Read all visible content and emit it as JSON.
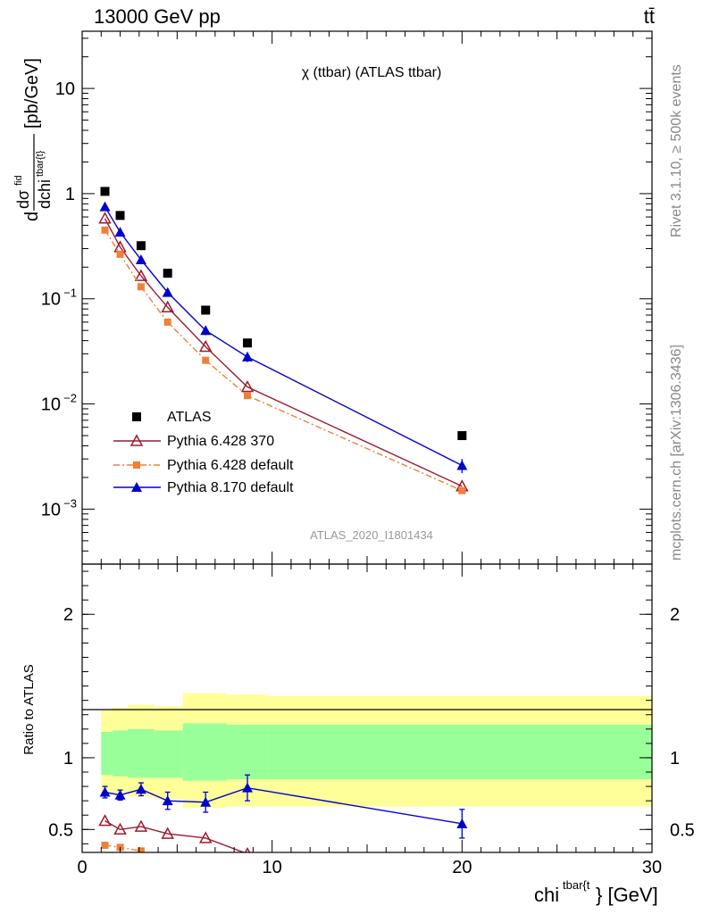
{
  "header": {
    "energy": "13000 GeV pp",
    "process": "tt̄"
  },
  "side_labels": {
    "rivet": "Rivet 3.1.10, ≥ 500k events",
    "mcplots": "mcplots.cern.ch [arXiv:1306.3436]"
  },
  "chart_data": [
    {
      "type": "scatter",
      "panel": "main",
      "title": "χ (ttbar) (ATLAS ttbar)",
      "analysis_id": "ATLAS_2020_I1801434",
      "ylabel": "dσfid / dchitbar{t} [pb/GeV]",
      "ylabel_parts": {
        "d_top": "dσ",
        "sup_top": "fid",
        "d_bot": "dchi",
        "sup_bot": "tbar{t}",
        "unit": "[pb/GeV]",
        "lead": "d"
      },
      "yscale": "log",
      "ylim": [
        0.0003,
        35
      ],
      "xlim": [
        0,
        30
      ],
      "yticks": [
        {
          "v": 10,
          "base": "10",
          "exp": ""
        },
        {
          "v": 1,
          "base": "1",
          "exp": ""
        },
        {
          "v": 0.1,
          "base": "10",
          "exp": "−1"
        },
        {
          "v": 0.01,
          "base": "10",
          "exp": "−2"
        },
        {
          "v": 0.001,
          "base": "10",
          "exp": "−3"
        }
      ],
      "legend_position": "lower-left",
      "series": [
        {
          "name": "ATLAS",
          "marker": "square",
          "color": "#000000",
          "line": "none",
          "x": [
            1.2,
            2.0,
            3.1,
            4.5,
            6.5,
            8.7,
            20.0
          ],
          "y": [
            1.05,
            0.62,
            0.32,
            0.175,
            0.078,
            0.038,
            0.005
          ]
        },
        {
          "name": "Pythia 6.428 370",
          "marker": "triangle-open",
          "color": "#9b1c2e",
          "line": "solid",
          "x": [
            1.2,
            2.0,
            3.1,
            4.5,
            6.5,
            8.7,
            20.0
          ],
          "y": [
            0.58,
            0.31,
            0.165,
            0.083,
            0.035,
            0.0145,
            0.00165
          ]
        },
        {
          "name": "Pythia 6.428 default",
          "marker": "square-small",
          "color": "#f07f3a",
          "line": "dashdot",
          "x": [
            1.2,
            2.0,
            3.1,
            4.5,
            6.5,
            8.7,
            20.0
          ],
          "y": [
            0.45,
            0.265,
            0.13,
            0.06,
            0.026,
            0.012,
            0.0015
          ]
        },
        {
          "name": "Pythia 8.170 default",
          "marker": "triangle",
          "color": "#0000cc",
          "line": "solid",
          "x": [
            1.2,
            2.0,
            3.1,
            4.5,
            6.5,
            8.7,
            20.0
          ],
          "y": [
            0.75,
            0.43,
            0.235,
            0.115,
            0.05,
            0.028,
            0.0026
          ],
          "err": [
            0.03,
            0.02,
            0.015,
            0.006,
            0.005,
            0.003,
            0.0004
          ]
        }
      ]
    },
    {
      "type": "scatter",
      "panel": "ratio",
      "ylabel": "Ratio to ATLAS",
      "xlabel": "chitbar{t} [GeV]",
      "xlabel_parts": {
        "base": "chi",
        "sup": "tbar{t",
        "tail": "} [GeV]"
      },
      "ylim": [
        0.34,
        2.35
      ],
      "xlim": [
        0,
        30
      ],
      "xticks": [
        0,
        10,
        20,
        30
      ],
      "yticks": [
        0.5,
        1,
        2
      ],
      "reference_line": 1,
      "bands": {
        "yellow_color": "#ffff99",
        "green_color": "#99ff99",
        "edges": [
          1.0,
          1.6,
          2.4,
          3.8,
          5.3,
          7.6,
          9.8,
          30.0
        ],
        "yellow": [
          [
            0.76,
            1.33
          ],
          [
            0.75,
            1.35
          ],
          [
            0.73,
            1.37
          ],
          [
            0.71,
            1.36
          ],
          [
            0.65,
            1.45
          ],
          [
            0.66,
            1.44
          ],
          [
            0.66,
            1.43
          ]
        ],
        "green": [
          [
            0.88,
            1.18
          ],
          [
            0.87,
            1.19
          ],
          [
            0.86,
            1.2
          ],
          [
            0.86,
            1.19
          ],
          [
            0.84,
            1.24
          ],
          [
            0.85,
            1.23
          ],
          [
            0.85,
            1.23
          ]
        ]
      },
      "series": [
        {
          "name": "Pythia 6.428 370",
          "marker": "triangle-open",
          "color": "#9b1c2e",
          "x": [
            1.2,
            2.0,
            3.1,
            4.5,
            6.5,
            8.7
          ],
          "y": [
            0.56,
            0.5,
            0.52,
            0.47,
            0.44,
            0.33
          ]
        },
        {
          "name": "Pythia 6.428 default",
          "marker": "square-small",
          "color": "#f07f3a",
          "x": [
            1.2,
            2.0,
            3.1
          ],
          "y": [
            0.39,
            0.375,
            0.35
          ]
        },
        {
          "name": "Pythia 8.170 default",
          "marker": "triangle",
          "color": "#0000cc",
          "x": [
            1.2,
            2.0,
            3.1,
            4.5,
            6.5,
            8.7,
            20.0
          ],
          "y": [
            0.76,
            0.74,
            0.78,
            0.7,
            0.69,
            0.79,
            0.54
          ],
          "err": [
            0.04,
            0.035,
            0.045,
            0.06,
            0.07,
            0.09,
            0.1
          ]
        }
      ]
    }
  ]
}
